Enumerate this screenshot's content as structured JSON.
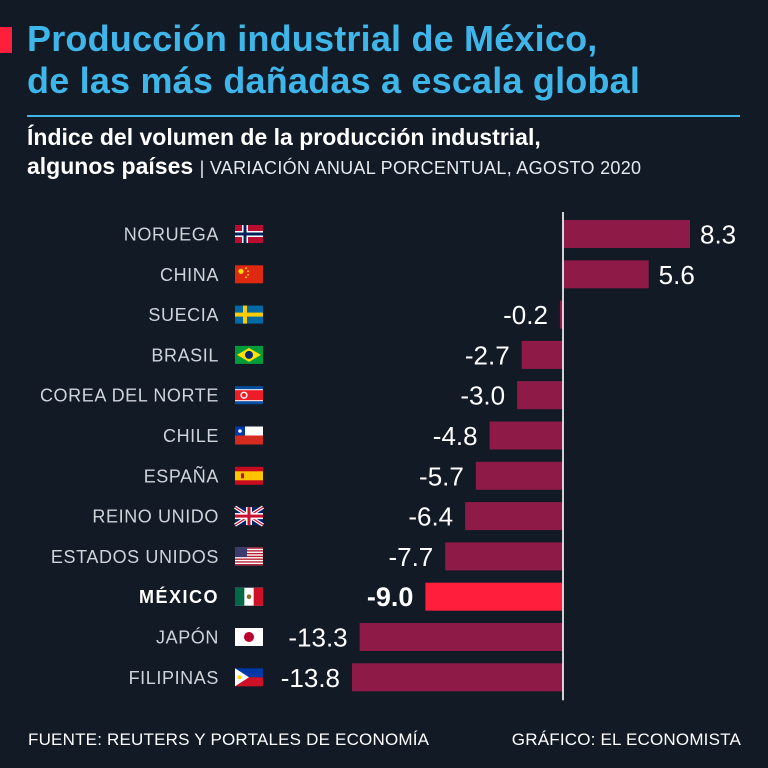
{
  "header": {
    "title_line1": "Producción industrial de México,",
    "title_line2": "de las más dañadas a escala global",
    "subtitle_line1": "Índice del volumen de la producción industrial,",
    "subtitle_line2": "algunos países",
    "subtitle_unit": "| VARIACIÓN ANUAL PORCENTUAL, AGOSTO 2020"
  },
  "colors": {
    "background": "#121a26",
    "title": "#3fb6ea",
    "bar": "#8e1a48",
    "highlight_bar": "#ff1e3c",
    "axis": "#ffffff",
    "label": "#cfd3da"
  },
  "chart_data": {
    "type": "bar",
    "orientation": "horizontal",
    "title": "Índice del volumen de la producción industrial, algunos países",
    "unit": "VARIACIÓN ANUAL PORCENTUAL, AGOSTO 2020",
    "categories": [
      "NORUEGA",
      "CHINA",
      "SUECIA",
      "BRASIL",
      "COREA DEL NORTE",
      "CHILE",
      "ESPAÑA",
      "REINO UNIDO",
      "ESTADOS UNIDOS",
      "MÉXICO",
      "JAPÓN",
      "FILIPINAS"
    ],
    "values": [
      8.3,
      5.6,
      -0.2,
      -2.7,
      -3.0,
      -4.8,
      -5.7,
      -6.4,
      -7.7,
      -9.0,
      -13.3,
      -13.8
    ],
    "labels": [
      "8.3",
      "5.6",
      "-0.2",
      "-2.7",
      "-3.0",
      "-4.8",
      "-5.7",
      "-6.4",
      "-7.7",
      "-9.0",
      "-13.3",
      "-13.8"
    ],
    "flags": [
      "norway-flag-icon",
      "china-flag-icon",
      "sweden-flag-icon",
      "brazil-flag-icon",
      "korea-flag-icon",
      "chile-flag-icon",
      "spain-flag-icon",
      "uk-flag-icon",
      "usa-flag-icon",
      "mexico-flag-icon",
      "japan-flag-icon",
      "philippines-flag-icon"
    ],
    "highlight": "MÉXICO",
    "xlim": [
      -13.8,
      8.3
    ]
  },
  "footer": {
    "source": "FUENTE: REUTERS Y PORTALES DE ECONOMÍA",
    "credit": "GRÁFICO: EL ECONOMISTA"
  }
}
